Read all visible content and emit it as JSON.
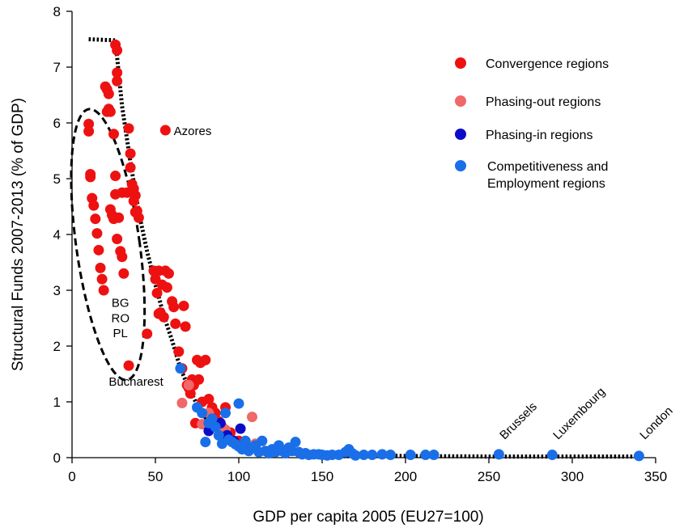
{
  "chart_data": {
    "type": "scatter",
    "title": "",
    "xlabel": "GDP per capita 2005 (EU27=100)",
    "ylabel": "Structural Funds 2007-2013 (% of GDP)",
    "xlim": [
      0,
      350
    ],
    "ylim": [
      0,
      8
    ],
    "xticks": [
      "0",
      "50",
      "100",
      "150",
      "200",
      "250",
      "300",
      "350"
    ],
    "yticks": [
      "0",
      "1",
      "2",
      "3",
      "4",
      "5",
      "6",
      "7",
      "8"
    ],
    "grid": false,
    "legend_position": "top-right",
    "series": [
      {
        "name": "Convergence regions",
        "color": "#ee1111",
        "points": [
          [
            10,
            5.98
          ],
          [
            10,
            5.85
          ],
          [
            11,
            5.08
          ],
          [
            11,
            5.03
          ],
          [
            12,
            4.65
          ],
          [
            13,
            4.52
          ],
          [
            14,
            4.28
          ],
          [
            15,
            4.02
          ],
          [
            16,
            3.72
          ],
          [
            17,
            3.4
          ],
          [
            18,
            3.2
          ],
          [
            19,
            3.0
          ],
          [
            20,
            6.65
          ],
          [
            21,
            6.6
          ],
          [
            21,
            6.2
          ],
          [
            22,
            6.25
          ],
          [
            22,
            6.52
          ],
          [
            23,
            6.2
          ],
          [
            23,
            4.45
          ],
          [
            24,
            4.35
          ],
          [
            25,
            5.8
          ],
          [
            25,
            4.28
          ],
          [
            26,
            7.4
          ],
          [
            26,
            5.05
          ],
          [
            26,
            4.72
          ],
          [
            27,
            7.3
          ],
          [
            27,
            6.9
          ],
          [
            27,
            6.75
          ],
          [
            27,
            3.92
          ],
          [
            28,
            4.3
          ],
          [
            29,
            3.7
          ],
          [
            30,
            3.6
          ],
          [
            30,
            4.75
          ],
          [
            31,
            3.3
          ],
          [
            33,
            4.75
          ],
          [
            34,
            1.65
          ],
          [
            34,
            5.9
          ],
          [
            35,
            5.45
          ],
          [
            35,
            5.2
          ],
          [
            36,
            4.9
          ],
          [
            37,
            4.82
          ],
          [
            37,
            4.6
          ],
          [
            38,
            4.7
          ],
          [
            38,
            4.4
          ],
          [
            39,
            4.42
          ],
          [
            40,
            4.3
          ],
          [
            45,
            2.22
          ],
          [
            49,
            3.35
          ],
          [
            50,
            3.2
          ],
          [
            51,
            2.95
          ],
          [
            52,
            3.35
          ],
          [
            52,
            2.58
          ],
          [
            53,
            2.6
          ],
          [
            54,
            3.1
          ],
          [
            55,
            2.52
          ],
          [
            56,
            3.35
          ],
          [
            56,
            5.87
          ],
          [
            57,
            3.05
          ],
          [
            58,
            3.3
          ],
          [
            60,
            2.8
          ],
          [
            61,
            2.7
          ],
          [
            62,
            2.4
          ],
          [
            64,
            1.9
          ],
          [
            66,
            1.6
          ],
          [
            67,
            2.72
          ],
          [
            68,
            2.35
          ],
          [
            69,
            1.3
          ],
          [
            70,
            1.25
          ],
          [
            71,
            1.15
          ],
          [
            72,
            1.4
          ],
          [
            73,
            1.3
          ],
          [
            74,
            0.62
          ],
          [
            75,
            1.75
          ],
          [
            76,
            1.4
          ],
          [
            77,
            1.7
          ],
          [
            78,
            1.0
          ],
          [
            80,
            1.75
          ],
          [
            82,
            1.05
          ],
          [
            84,
            0.9
          ],
          [
            86,
            0.8
          ],
          [
            88,
            0.65
          ],
          [
            90,
            0.55
          ],
          [
            92,
            0.9
          ],
          [
            95,
            0.45
          ],
          [
            100,
            0.3
          ]
        ]
      },
      {
        "name": "Phasing-out regions",
        "color": "#f06868",
        "points": [
          [
            66,
            0.98
          ],
          [
            70,
            1.3
          ],
          [
            78,
            0.6
          ],
          [
            82,
            0.8
          ],
          [
            90,
            0.45
          ],
          [
            92,
            0.5
          ],
          [
            108,
            0.73
          ],
          [
            110,
            0.25
          ]
        ]
      },
      {
        "name": "Phasing-in regions",
        "color": "#0c0cc8",
        "points": [
          [
            82,
            0.48
          ],
          [
            89,
            0.62
          ],
          [
            93,
            0.4
          ],
          [
            97,
            0.3
          ],
          [
            101,
            0.52
          ],
          [
            104,
            0.22
          ],
          [
            110,
            0.2
          ]
        ]
      },
      {
        "name": "Competitiveness and Employment regions",
        "color": "#1a6fe8",
        "points": [
          [
            65,
            1.6
          ],
          [
            75,
            0.9
          ],
          [
            78,
            0.8
          ],
          [
            80,
            0.28
          ],
          [
            82,
            0.62
          ],
          [
            84,
            0.7
          ],
          [
            86,
            0.55
          ],
          [
            88,
            0.4
          ],
          [
            90,
            0.25
          ],
          [
            92,
            0.8
          ],
          [
            94,
            0.32
          ],
          [
            96,
            0.28
          ],
          [
            98,
            0.24
          ],
          [
            100,
            0.97
          ],
          [
            100,
            0.2
          ],
          [
            102,
            0.15
          ],
          [
            104,
            0.3
          ],
          [
            106,
            0.12
          ],
          [
            108,
            0.18
          ],
          [
            110,
            0.22
          ],
          [
            112,
            0.1
          ],
          [
            114,
            0.3
          ],
          [
            116,
            0.12
          ],
          [
            118,
            0.08
          ],
          [
            120,
            0.15
          ],
          [
            122,
            0.1
          ],
          [
            124,
            0.22
          ],
          [
            126,
            0.12
          ],
          [
            128,
            0.08
          ],
          [
            130,
            0.18
          ],
          [
            132,
            0.12
          ],
          [
            134,
            0.28
          ],
          [
            136,
            0.1
          ],
          [
            138,
            0.06
          ],
          [
            140,
            0.08
          ],
          [
            142,
            0.05
          ],
          [
            145,
            0.06
          ],
          [
            148,
            0.06
          ],
          [
            150,
            0.05
          ],
          [
            153,
            0.04
          ],
          [
            156,
            0.05
          ],
          [
            160,
            0.05
          ],
          [
            164,
            0.1
          ],
          [
            166,
            0.15
          ],
          [
            168,
            0.08
          ],
          [
            170,
            0.04
          ],
          [
            175,
            0.05
          ],
          [
            180,
            0.05
          ],
          [
            186,
            0.06
          ],
          [
            191,
            0.05
          ],
          [
            203,
            0.05
          ],
          [
            212,
            0.05
          ],
          [
            217,
            0.05
          ],
          [
            256,
            0.06
          ],
          [
            288,
            0.05
          ],
          [
            340,
            0.03
          ]
        ]
      }
    ],
    "trend_line": {
      "style": "dotted",
      "points": [
        [
          10,
          7.5
        ],
        [
          26,
          7.48
        ],
        [
          30,
          6.3
        ],
        [
          35,
          5.3
        ],
        [
          40,
          4.4
        ],
        [
          45,
          3.7
        ],
        [
          50,
          3.1
        ],
        [
          55,
          2.55
        ],
        [
          60,
          2.1
        ],
        [
          65,
          1.6
        ],
        [
          70,
          1.25
        ],
        [
          75,
          0.95
        ],
        [
          80,
          0.72
        ],
        [
          90,
          0.4
        ],
        [
          100,
          0.22
        ],
        [
          110,
          0.13
        ],
        [
          125,
          0.08
        ],
        [
          150,
          0.05
        ],
        [
          200,
          0.03
        ],
        [
          250,
          0.02
        ],
        [
          340,
          0.02
        ]
      ]
    },
    "ellipse": {
      "cx": 21.5,
      "cy": 3.82,
      "rx": 19,
      "ry": 2.45,
      "style": "dashed"
    },
    "annotations": [
      {
        "text": "Azores",
        "x": 61,
        "y": 5.87
      },
      {
        "text": "BG",
        "x": 29,
        "y": 2.7
      },
      {
        "text": "RO",
        "x": 29,
        "y": 2.43
      },
      {
        "text": "PL",
        "x": 29,
        "y": 2.16
      },
      {
        "text": "Bucharest",
        "x": 22,
        "y": 1.29
      },
      {
        "text": "Brussels",
        "x": 256,
        "y": 0.5,
        "rotate": -45
      },
      {
        "text": "Luxembourg",
        "x": 288,
        "y": 0.5,
        "rotate": -45
      },
      {
        "text": "London",
        "x": 340,
        "y": 0.5,
        "rotate": -45
      }
    ]
  }
}
